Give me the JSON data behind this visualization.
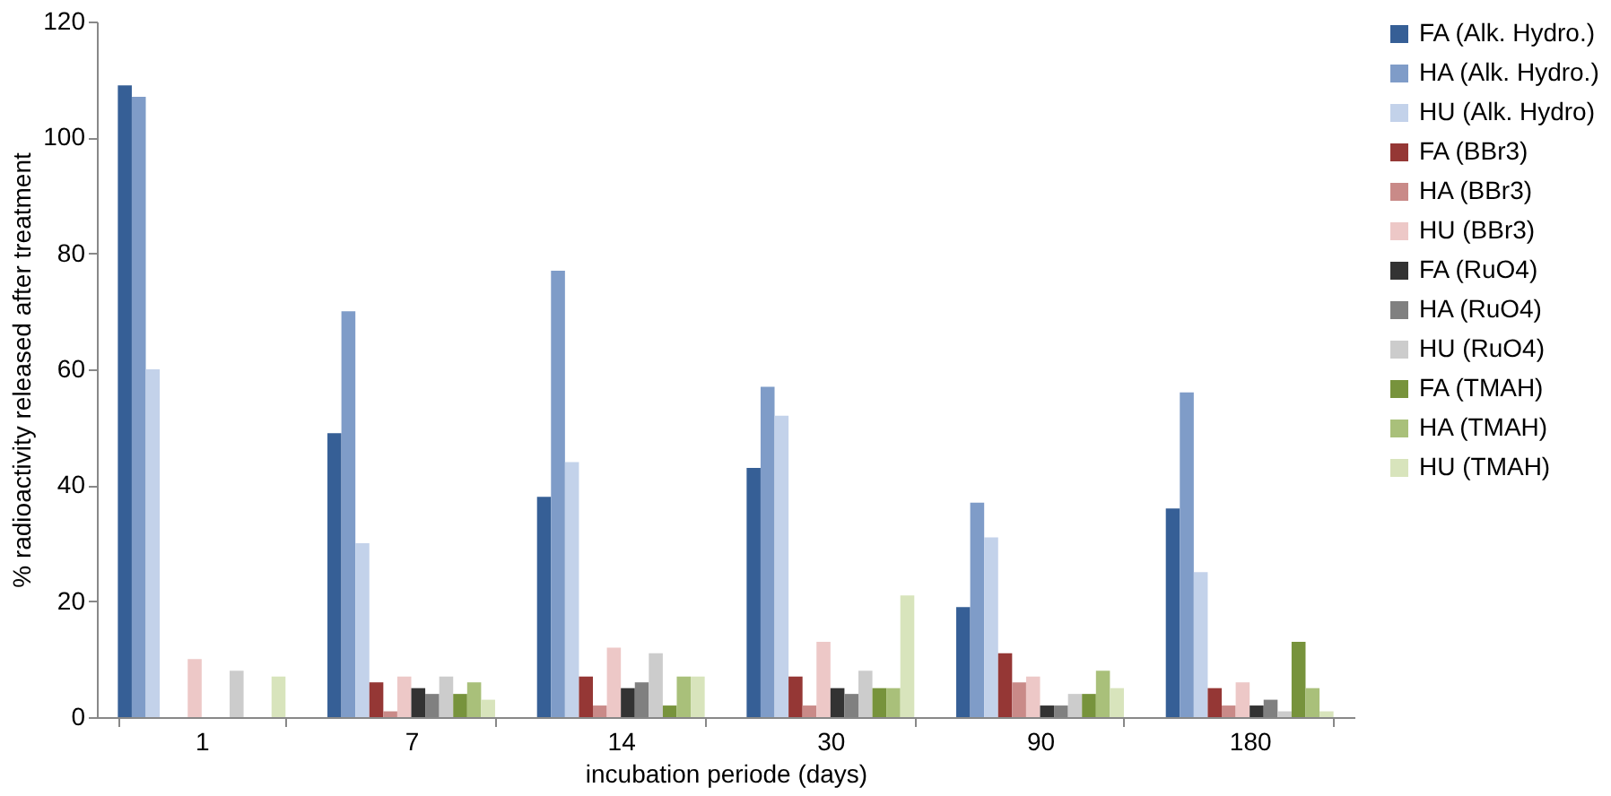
{
  "chart_data": {
    "type": "bar",
    "xlabel": "incubation periode (days)",
    "ylabel": "% radioactivity released after treatment",
    "categories": [
      "1",
      "7",
      "14",
      "30",
      "90",
      "180"
    ],
    "ylim": [
      0,
      120
    ],
    "yticks": [
      0,
      20,
      40,
      60,
      80,
      100,
      120
    ],
    "grid": false,
    "legend": "right",
    "series": [
      {
        "name": "FA (Alk. Hydro.)",
        "color": "#365f96",
        "values": [
          109,
          49,
          38,
          43,
          19,
          36
        ]
      },
      {
        "name": "HA (Alk. Hydro.)",
        "color": "#7f9cc8",
        "values": [
          107,
          70,
          77,
          57,
          37,
          56
        ]
      },
      {
        "name": "HU (Alk. Hydro)",
        "color": "#c3d2ea",
        "values": [
          60,
          30,
          44,
          52,
          31,
          25
        ]
      },
      {
        "name": "FA (BBr3)",
        "color": "#953735",
        "values": [
          0,
          6,
          7,
          7,
          11,
          5
        ]
      },
      {
        "name": "HA (BBr3)",
        "color": "#c98a88",
        "values": [
          0,
          1,
          2,
          2,
          6,
          2
        ]
      },
      {
        "name": "HU (BBr3)",
        "color": "#edc8c7",
        "values": [
          10,
          7,
          12,
          13,
          7,
          6
        ]
      },
      {
        "name": "FA (RuO4)",
        "color": "#333333",
        "values": [
          0,
          5,
          5,
          5,
          2,
          2
        ]
      },
      {
        "name": "HA (RuO4)",
        "color": "#808080",
        "values": [
          0,
          4,
          6,
          4,
          2,
          3
        ]
      },
      {
        "name": "HU (RuO4)",
        "color": "#cccccc",
        "values": [
          8,
          7,
          11,
          8,
          4,
          1
        ]
      },
      {
        "name": "FA (TMAH)",
        "color": "#77933c",
        "values": [
          0,
          4,
          2,
          5,
          4,
          13
        ]
      },
      {
        "name": "HA (TMAH)",
        "color": "#a9c07a",
        "values": [
          0,
          6,
          7,
          5,
          8,
          5
        ]
      },
      {
        "name": "HU (TMAH)",
        "color": "#d8e4bc",
        "values": [
          7,
          3,
          7,
          21,
          5,
          1
        ]
      }
    ]
  }
}
